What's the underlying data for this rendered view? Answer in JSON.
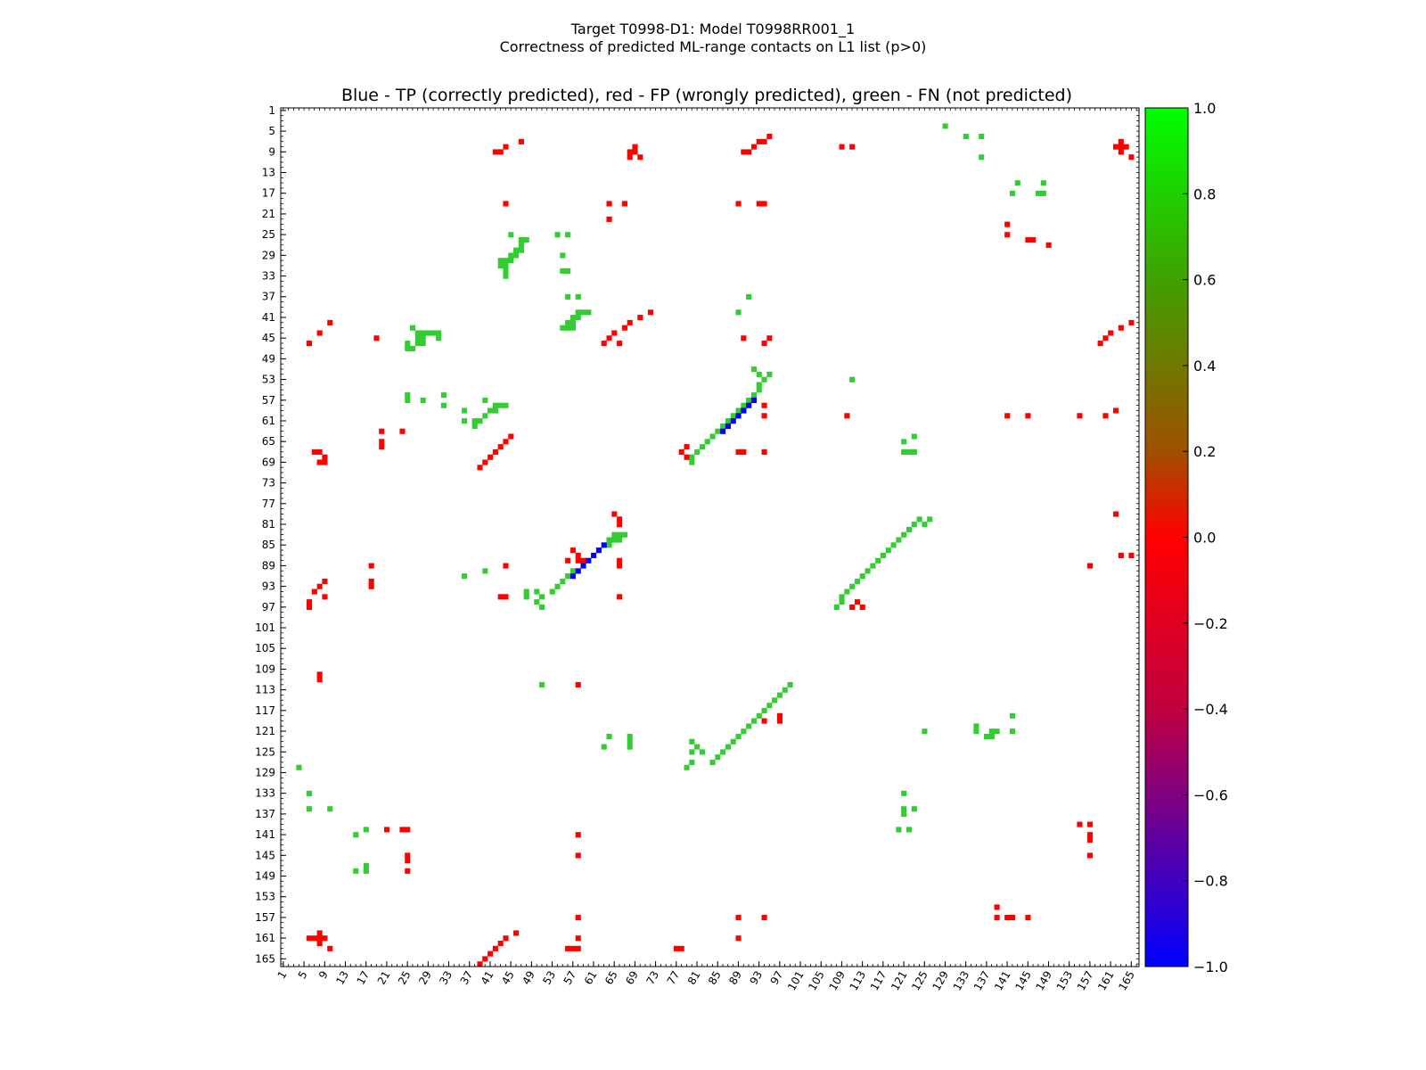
{
  "figure": {
    "title_line1": "Target T0998-D1: Model T0998RR001_1",
    "title_line2": "Correctness of predicted ML-range contacts on L1 list (p>0)"
  },
  "chart_data": {
    "type": "heatmap",
    "title": "Blue - TP (correctly predicted), red - FP (wrongly predicted), green - FN (not predicted)",
    "xlabel": "",
    "ylabel": "",
    "xlim": [
      1,
      166
    ],
    "ylim": [
      1,
      166
    ],
    "y_inverted": true,
    "grid": false,
    "x_ticks": [
      "1",
      "5",
      "9",
      "13",
      "17",
      "21",
      "25",
      "29",
      "33",
      "37",
      "41",
      "45",
      "49",
      "53",
      "57",
      "61",
      "65",
      "69",
      "73",
      "77",
      "81",
      "85",
      "89",
      "93",
      "97",
      "101",
      "105",
      "109",
      "113",
      "117",
      "121",
      "125",
      "129",
      "133",
      "137",
      "141",
      "145",
      "149",
      "153",
      "157",
      "161",
      "165"
    ],
    "y_ticks": [
      "1",
      "5",
      "9",
      "13",
      "17",
      "21",
      "25",
      "29",
      "33",
      "37",
      "41",
      "45",
      "49",
      "53",
      "57",
      "61",
      "65",
      "69",
      "73",
      "77",
      "81",
      "85",
      "89",
      "93",
      "97",
      "101",
      "105",
      "109",
      "113",
      "117",
      "121",
      "125",
      "129",
      "133",
      "137",
      "141",
      "145",
      "149",
      "153",
      "157",
      "161",
      "165"
    ],
    "colorbar": {
      "range": [
        -1.0,
        1.0
      ],
      "ticks": [
        "1.0",
        "0.8",
        "0.6",
        "0.4",
        "0.2",
        "0.0",
        "−0.2",
        "−0.4",
        "−0.6",
        "−0.8",
        "−1.0"
      ],
      "colors": [
        "#00ff00",
        "#ff0000",
        "#0000ff"
      ]
    },
    "categories": {
      "TP": {
        "value": -1.0,
        "color": "#0000ff"
      },
      "FP": {
        "value": 0.0,
        "color": "#ff0000"
      },
      "FN": {
        "value": 1.0,
        "color": "#33cc33"
      }
    },
    "fp_cells": [
      [
        9,
        42
      ],
      [
        9,
        43
      ],
      [
        8,
        44
      ],
      [
        7,
        47
      ],
      [
        9,
        68
      ],
      [
        9,
        69
      ],
      [
        10,
        68
      ],
      [
        10,
        70
      ],
      [
        8,
        69
      ],
      [
        9,
        90
      ],
      [
        9,
        91
      ],
      [
        8,
        92
      ],
      [
        7,
        93
      ],
      [
        7,
        94
      ],
      [
        6,
        95
      ],
      [
        8,
        109
      ],
      [
        8,
        111
      ],
      [
        8,
        162
      ],
      [
        8,
        163
      ],
      [
        8,
        164
      ],
      [
        7,
        163
      ],
      [
        9,
        163
      ],
      [
        10,
        165
      ],
      [
        19,
        44
      ],
      [
        19,
        64
      ],
      [
        19,
        67
      ],
      [
        19,
        89
      ],
      [
        19,
        93
      ],
      [
        19,
        94
      ],
      [
        22,
        64
      ],
      [
        23,
        141
      ],
      [
        25,
        141
      ],
      [
        26,
        145
      ],
      [
        26,
        146
      ],
      [
        27,
        149
      ],
      [
        40,
        72
      ],
      [
        41,
        70
      ],
      [
        42,
        68
      ],
      [
        43,
        67
      ],
      [
        44,
        65
      ],
      [
        45,
        64
      ],
      [
        46,
        63
      ],
      [
        46,
        66
      ],
      [
        42,
        10
      ],
      [
        44,
        8
      ],
      [
        46,
        6
      ],
      [
        45,
        19
      ],
      [
        42,
        165
      ],
      [
        43,
        163
      ],
      [
        44,
        161
      ],
      [
        45,
        160
      ],
      [
        46,
        159
      ],
      [
        45,
        95
      ],
      [
        46,
        94
      ],
      [
        45,
        90
      ],
      [
        60,
        94
      ],
      [
        59,
        90
      ],
      [
        58,
        94
      ],
      [
        60,
        110
      ],
      [
        60,
        141
      ],
      [
        60,
        145
      ],
      [
        60,
        155
      ],
      [
        60,
        160
      ],
      [
        59,
        162
      ],
      [
        63,
        20
      ],
      [
        63,
        24
      ],
      [
        65,
        20
      ],
      [
        66,
        20
      ],
      [
        64,
        45
      ],
      [
        65,
        44
      ],
      [
        66,
        43
      ],
      [
        67,
        42
      ],
      [
        68,
        41
      ],
      [
        69,
        40
      ],
      [
        70,
        39
      ],
      [
        67,
        7
      ],
      [
        67,
        8
      ],
      [
        68,
        9
      ],
      [
        69,
        8
      ],
      [
        69,
        9
      ],
      [
        67,
        78
      ],
      [
        66,
        79
      ],
      [
        68,
        79
      ],
      [
        67,
        89
      ],
      [
        67,
        90
      ],
      [
        67,
        94
      ],
      [
        79,
        65
      ],
      [
        80,
        66
      ],
      [
        81,
        66
      ],
      [
        79,
        162
      ],
      [
        86,
        57
      ],
      [
        87,
        58
      ],
      [
        88,
        59
      ],
      [
        88,
        56
      ],
      [
        88,
        58
      ],
      [
        88,
        66
      ],
      [
        89,
        66
      ],
      [
        87,
        163
      ],
      [
        87,
        165
      ],
      [
        89,
        18
      ],
      [
        92,
        18
      ],
      [
        93,
        18
      ],
      [
        89,
        44
      ],
      [
        89,
        157
      ],
      [
        92,
        9
      ],
      [
        93,
        8
      ],
      [
        94,
        7
      ],
      [
        95,
        9
      ],
      [
        96,
        6
      ],
      [
        97,
        6
      ],
      [
        95,
        43
      ],
      [
        95,
        44
      ],
      [
        95,
        66
      ],
      [
        96,
        112
      ],
      [
        97,
        111
      ],
      [
        97,
        113
      ],
      [
        110,
        8
      ],
      [
        111,
        8
      ],
      [
        112,
        58
      ],
      [
        118,
        97
      ],
      [
        119,
        94
      ],
      [
        119,
        97
      ],
      [
        140,
        21
      ],
      [
        140,
        24
      ],
      [
        140,
        25
      ],
      [
        141,
        58
      ],
      [
        141,
        157
      ],
      [
        142,
        157
      ],
      [
        139,
        155
      ],
      [
        139,
        157
      ],
      [
        145,
        157
      ],
      [
        145,
        58
      ],
      [
        145,
        25
      ],
      [
        146,
        25
      ],
      [
        148,
        25
      ],
      [
        155,
        139
      ],
      [
        157,
        139
      ],
      [
        157,
        141
      ],
      [
        157,
        142
      ],
      [
        157,
        145
      ],
      [
        157,
        58
      ],
      [
        157,
        89
      ],
      [
        157,
        94
      ],
      [
        160,
        46
      ],
      [
        161,
        44
      ],
      [
        162,
        43
      ],
      [
        163,
        42
      ],
      [
        164,
        41
      ],
      [
        165,
        40
      ],
      [
        166,
        39
      ],
      [
        161,
        6
      ],
      [
        161,
        7
      ],
      [
        161,
        8
      ],
      [
        161,
        9
      ],
      [
        160,
        8
      ],
      [
        162,
        8
      ],
      [
        163,
        10
      ],
      [
        161,
        58
      ],
      [
        161,
        89
      ],
      [
        163,
        56
      ],
      [
        163,
        57
      ],
      [
        163,
        58
      ],
      [
        163,
        77
      ],
      [
        163,
        78
      ]
    ],
    "tp_cells": [
      [
        57,
        92
      ],
      [
        58,
        91
      ],
      [
        59,
        90
      ],
      [
        60,
        89
      ],
      [
        61,
        88
      ],
      [
        62,
        87
      ],
      [
        63,
        86
      ],
      [
        85,
        63
      ],
      [
        86,
        62
      ],
      [
        87,
        61
      ],
      [
        88,
        60
      ],
      [
        89,
        59
      ],
      [
        90,
        58
      ],
      [
        91,
        57
      ]
    ],
    "fn_cells": [
      [
        4,
        129
      ],
      [
        6,
        133
      ],
      [
        6,
        136
      ],
      [
        10,
        136
      ],
      [
        15,
        143
      ],
      [
        15,
        148
      ],
      [
        17,
        142
      ],
      [
        17,
        147
      ],
      [
        17,
        148
      ],
      [
        25,
        45
      ],
      [
        25,
        54
      ],
      [
        25,
        56
      ],
      [
        26,
        47
      ],
      [
        26,
        48
      ],
      [
        27,
        47
      ],
      [
        28,
        46
      ],
      [
        28,
        47
      ],
      [
        29,
        45
      ],
      [
        29,
        46
      ],
      [
        30,
        43
      ],
      [
        30,
        44
      ],
      [
        30,
        45
      ],
      [
        31,
        43
      ],
      [
        31,
        44
      ],
      [
        32,
        44
      ],
      [
        33,
        44
      ],
      [
        29,
        55
      ],
      [
        32,
        55
      ],
      [
        32,
        56
      ],
      [
        37,
        56
      ],
      [
        37,
        58
      ],
      [
        37,
        91
      ],
      [
        40,
        58
      ],
      [
        40,
        59
      ],
      [
        40,
        60
      ],
      [
        41,
        57
      ],
      [
        41,
        58
      ],
      [
        42,
        56
      ],
      [
        42,
        57
      ],
      [
        43,
        55
      ],
      [
        43,
        56
      ],
      [
        43,
        57
      ],
      [
        40,
        89
      ],
      [
        43,
        26
      ],
      [
        44,
        27
      ],
      [
        44,
        28
      ],
      [
        44,
        29
      ],
      [
        44,
        30
      ],
      [
        44,
        31
      ],
      [
        45,
        27
      ],
      [
        45,
        28
      ],
      [
        45,
        31
      ],
      [
        46,
        25
      ],
      [
        46,
        27
      ],
      [
        46,
        28
      ],
      [
        47,
        25
      ],
      [
        47,
        26
      ],
      [
        51,
        92
      ],
      [
        52,
        93
      ],
      [
        52,
        95
      ],
      [
        53,
        94
      ],
      [
        54,
        93
      ],
      [
        55,
        93
      ],
      [
        56,
        92
      ],
      [
        57,
        91
      ],
      [
        58,
        90
      ],
      [
        59,
        89
      ],
      [
        60,
        88
      ],
      [
        61,
        87
      ],
      [
        62,
        86
      ],
      [
        63,
        85
      ],
      [
        64,
        84
      ],
      [
        65,
        83
      ],
      [
        66,
        82
      ],
      [
        67,
        81
      ],
      [
        68,
        80
      ],
      [
        69,
        80
      ],
      [
        53,
        111
      ],
      [
        56,
        25
      ],
      [
        57,
        25
      ],
      [
        57,
        28
      ],
      [
        56,
        32
      ],
      [
        58,
        32
      ],
      [
        57,
        40
      ],
      [
        58,
        42
      ],
      [
        58,
        43
      ],
      [
        59,
        41
      ],
      [
        59,
        42
      ],
      [
        60,
        40
      ],
      [
        61,
        39
      ],
      [
        61,
        38
      ],
      [
        62,
        38
      ],
      [
        58,
        44
      ],
      [
        59,
        36
      ],
      [
        61,
        36
      ],
      [
        64,
        123
      ],
      [
        65,
        121
      ],
      [
        67,
        121
      ],
      [
        67,
        122
      ],
      [
        67,
        123
      ],
      [
        80,
        126
      ],
      [
        80,
        124
      ],
      [
        81,
        123
      ],
      [
        81,
        125
      ],
      [
        82,
        122
      ],
      [
        83,
        121
      ],
      [
        84,
        120
      ],
      [
        85,
        119
      ],
      [
        86,
        118
      ],
      [
        87,
        117
      ],
      [
        88,
        116
      ],
      [
        89,
        115
      ],
      [
        90,
        114
      ],
      [
        91,
        113
      ],
      [
        92,
        112
      ],
      [
        93,
        111
      ],
      [
        94,
        110
      ],
      [
        95,
        109
      ],
      [
        96,
        109
      ],
      [
        97,
        108
      ],
      [
        83,
        65
      ],
      [
        83,
        66
      ],
      [
        83,
        67
      ],
      [
        84,
        64
      ],
      [
        84,
        65
      ],
      [
        84,
        66
      ],
      [
        85,
        64
      ],
      [
        90,
        57
      ],
      [
        91,
        56
      ],
      [
        92,
        55
      ],
      [
        93,
        54
      ],
      [
        94,
        53
      ],
      [
        95,
        51
      ],
      [
        96,
        50
      ],
      [
        94,
        50
      ],
      [
        91,
        36
      ],
      [
        90,
        40
      ],
      [
        94,
        48
      ],
      [
        95,
        48
      ],
      [
        97,
        51
      ],
      [
        112,
        99
      ],
      [
        113,
        98
      ],
      [
        114,
        97
      ],
      [
        115,
        96
      ],
      [
        116,
        95
      ],
      [
        117,
        94
      ],
      [
        118,
        93
      ],
      [
        119,
        92
      ],
      [
        120,
        91
      ],
      [
        121,
        90
      ],
      [
        122,
        89
      ],
      [
        123,
        88
      ],
      [
        124,
        87
      ],
      [
        125,
        86
      ],
      [
        126,
        85
      ],
      [
        127,
        84
      ],
      [
        123,
        80
      ],
      [
        125,
        80
      ],
      [
        127,
        80
      ],
      [
        124,
        81
      ],
      [
        125,
        82
      ],
      [
        128,
        79
      ],
      [
        112,
        51
      ],
      [
        121,
        125
      ],
      [
        124,
        63
      ],
      [
        122,
        64
      ],
      [
        122,
        68
      ],
      [
        123,
        68
      ],
      [
        124,
        68
      ],
      [
        120,
        135
      ],
      [
        121,
        135
      ],
      [
        121,
        138
      ],
      [
        121,
        139
      ],
      [
        122,
        137
      ],
      [
        122,
        138
      ],
      [
        121,
        142
      ],
      [
        118,
        142
      ],
      [
        128,
        4
      ],
      [
        133,
        6
      ],
      [
        136,
        6
      ],
      [
        136,
        10
      ],
      [
        133,
        121
      ],
      [
        136,
        121
      ],
      [
        136,
        123
      ],
      [
        137,
        121
      ],
      [
        140,
        120
      ],
      [
        140,
        122
      ],
      [
        140,
        17
      ],
      [
        141,
        15
      ],
      [
        148,
        15
      ],
      [
        147,
        17
      ],
      [
        148,
        17
      ]
    ]
  }
}
